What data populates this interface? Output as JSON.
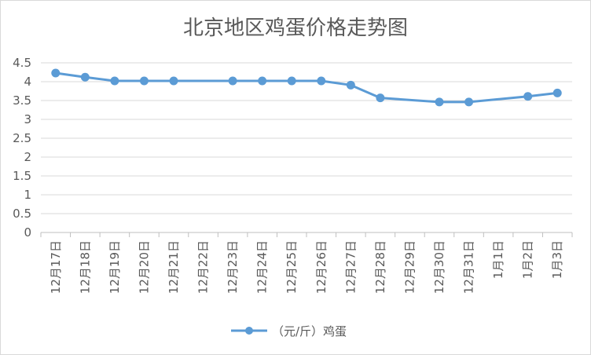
{
  "chart_data": {
    "type": "line",
    "title": "北京地区鸡蛋价格走势图",
    "categories": [
      "12月17日",
      "12月18日",
      "12月19日",
      "12月20日",
      "12月21日",
      "12月22日",
      "12月23日",
      "12月24日",
      "12月25日",
      "12月26日",
      "12月27日",
      "12月28日",
      "12月29日",
      "12月30日",
      "12月31日",
      "1月1日",
      "1月2日",
      "1月3日"
    ],
    "series": [
      {
        "name": "（元/斤）鸡蛋",
        "color": "#5b9bd5",
        "values": [
          4.23,
          4.12,
          4.02,
          4.02,
          4.02,
          null,
          4.02,
          4.02,
          4.02,
          4.02,
          3.91,
          3.57,
          null,
          3.46,
          3.46,
          null,
          3.61,
          3.7
        ]
      }
    ],
    "yticks": [
      "0",
      "0.5",
      "1",
      "1.5",
      "2",
      "2.5",
      "3",
      "3.5",
      "4",
      "4.5"
    ],
    "ylim": [
      0,
      4.5
    ],
    "grid": true,
    "legend": "bottom"
  }
}
